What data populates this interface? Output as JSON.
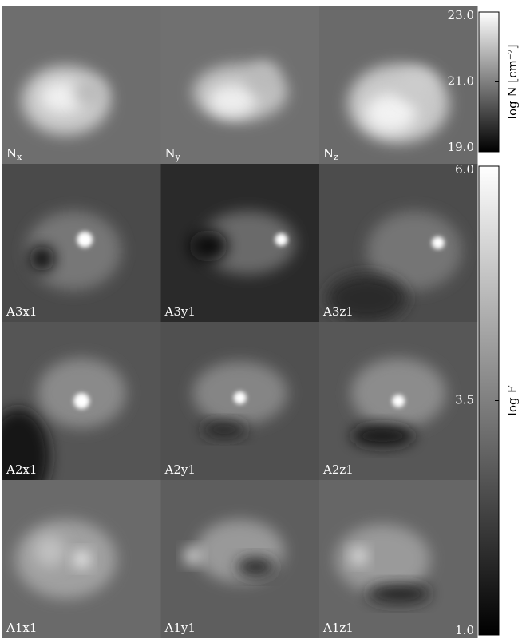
{
  "panels": [
    [
      {
        "label": "N",
        "sub": "x"
      },
      {
        "label": "N",
        "sub": "y"
      },
      {
        "label": "N",
        "sub": "z"
      }
    ],
    [
      {
        "label": "A3x1"
      },
      {
        "label": "A3y1"
      },
      {
        "label": "A3z1"
      }
    ],
    [
      {
        "label": "A2x1"
      },
      {
        "label": "A2y1"
      },
      {
        "label": "A2z1"
      }
    ],
    [
      {
        "label": "A1x1"
      },
      {
        "label": "A1y1"
      },
      {
        "label": "A1z1"
      }
    ]
  ],
  "colorbars": [
    {
      "label": "log N [cm⁻²]",
      "lim": [
        19,
        23
      ],
      "ticks": [
        {
          "value": 23,
          "label": "23.0"
        },
        {
          "value": 21,
          "label": "21.0"
        },
        {
          "value": 19,
          "label": "19.0"
        }
      ]
    },
    {
      "label": "log F",
      "lim": [
        1,
        6
      ],
      "ticks": [
        {
          "value": 6,
          "label": "6.0"
        },
        {
          "value": 3.5,
          "label": "3.5"
        },
        {
          "value": 1,
          "label": "1.0"
        }
      ]
    }
  ]
}
